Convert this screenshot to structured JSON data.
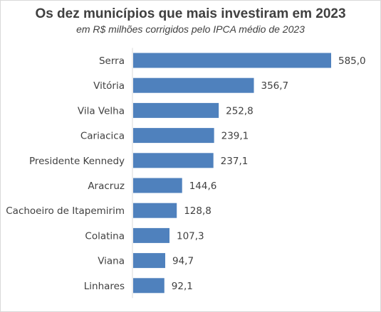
{
  "chart_data": {
    "type": "bar",
    "orientation": "horizontal",
    "title": "Os dez municípios que mais investiram em 2023",
    "subtitle": "em R$ milhões corrigidos pelo IPCA médio de 2023",
    "categories": [
      "Serra",
      "Vitória",
      "Vila Velha",
      "Cariacica",
      "Presidente Kennedy",
      "Aracruz",
      "Cachoeiro de Itapemirim",
      "Colatina",
      "Viana",
      "Linhares"
    ],
    "values": [
      585.0,
      356.7,
      252.8,
      239.1,
      237.1,
      144.6,
      128.8,
      107.3,
      94.7,
      92.1
    ],
    "data_labels": [
      "585,0",
      "356,7",
      "252,8",
      "239,1",
      "237,1",
      "144,6",
      "128,8",
      "107,3",
      "94,7",
      "92,1"
    ],
    "bar_color": "#4f81bd",
    "grid": false,
    "legend": "none"
  }
}
